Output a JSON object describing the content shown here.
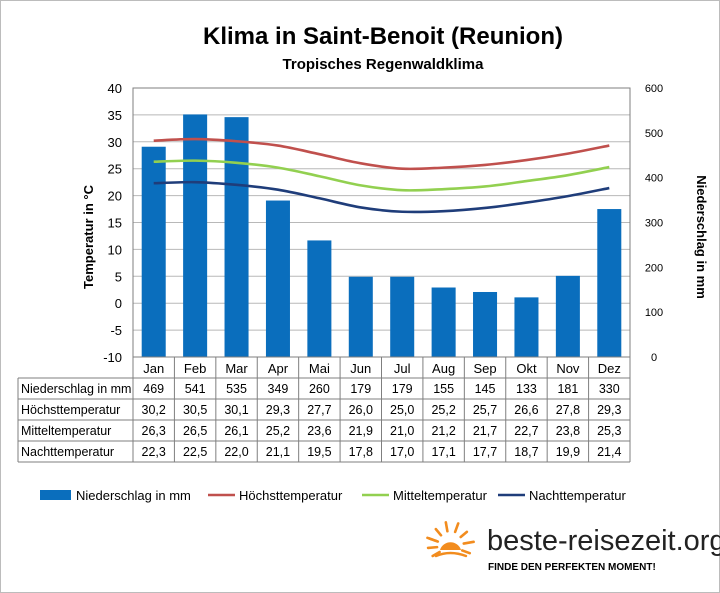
{
  "chart_data": {
    "type": "bar+line",
    "title": "Klima in Saint-Benoit (Reunion)",
    "subtitle": "Tropisches Regenwaldklima",
    "ylabel_left": "Temperatur in °C",
    "ylabel_right": "Niederschlag in mm",
    "ylim_left": [
      -10,
      40
    ],
    "ylim_right": [
      0,
      600
    ],
    "yticks_left": [
      "40",
      "35",
      "30",
      "25",
      "20",
      "15",
      "10",
      "5",
      "0",
      "-5",
      "-10"
    ],
    "yticks_right": [
      "600",
      "500",
      "400",
      "300",
      "200",
      "100",
      "0"
    ],
    "categories": [
      "Jan",
      "Feb",
      "Mar",
      "Apr",
      "Mai",
      "Jun",
      "Jul",
      "Aug",
      "Sep",
      "Okt",
      "Nov",
      "Dez"
    ],
    "series": [
      {
        "name": "Niederschlag in mm",
        "axis": "right",
        "kind": "bar",
        "color": "#0a6ebd",
        "values": [
          469,
          541,
          535,
          349,
          260,
          179,
          179,
          155,
          145,
          133,
          181,
          330
        ]
      },
      {
        "name": "Höchsttemperatur",
        "axis": "left",
        "kind": "line",
        "color": "#c0504d",
        "values": [
          30.2,
          30.5,
          30.1,
          29.3,
          27.7,
          26.0,
          25.0,
          25.2,
          25.7,
          26.6,
          27.8,
          29.3
        ]
      },
      {
        "name": "Mitteltemperatur",
        "axis": "left",
        "kind": "line",
        "color": "#92d050",
        "values": [
          26.3,
          26.5,
          26.1,
          25.2,
          23.6,
          21.9,
          21.0,
          21.2,
          21.7,
          22.7,
          23.8,
          25.3
        ]
      },
      {
        "name": "Nachttemperatur",
        "axis": "left",
        "kind": "line",
        "color": "#1f3d7a",
        "values": [
          22.3,
          22.5,
          22.0,
          21.1,
          19.5,
          17.8,
          17.0,
          17.1,
          17.7,
          18.7,
          19.9,
          21.4
        ]
      }
    ],
    "table_rows": [
      {
        "label": "Niederschlag in mm",
        "cells": [
          "469",
          "541",
          "535",
          "349",
          "260",
          "179",
          "179",
          "155",
          "145",
          "133",
          "181",
          "330"
        ]
      },
      {
        "label": "Höchsttemperatur",
        "cells": [
          "30,2",
          "30,5",
          "30,1",
          "29,3",
          "27,7",
          "26,0",
          "25,0",
          "25,2",
          "25,7",
          "26,6",
          "27,8",
          "29,3"
        ]
      },
      {
        "label": "Mitteltemperatur",
        "cells": [
          "26,3",
          "26,5",
          "26,1",
          "25,2",
          "23,6",
          "21,9",
          "21,0",
          "21,2",
          "21,7",
          "22,7",
          "23,8",
          "25,3"
        ]
      },
      {
        "label": "Nachttemperatur",
        "cells": [
          "22,3",
          "22,5",
          "22,0",
          "21,1",
          "19,5",
          "17,8",
          "17,0",
          "17,1",
          "17,7",
          "18,7",
          "19,9",
          "21,4"
        ]
      }
    ],
    "grid": true,
    "legend_position": "bottom"
  },
  "brand": {
    "name": "beste-reisezeit.org",
    "tagline": "FINDE DEN PERFEKTEN MOMENT!",
    "sun_color": "#f28c1e"
  }
}
